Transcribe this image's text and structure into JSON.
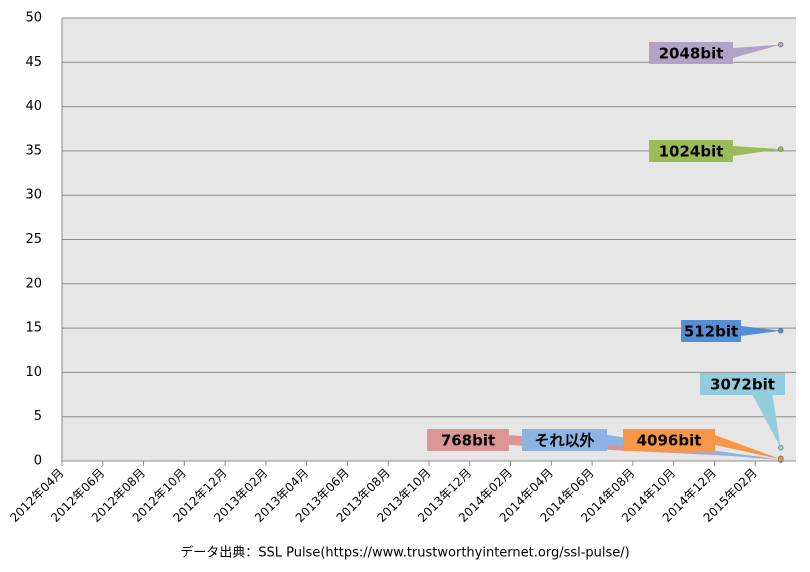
{
  "chart_data": {
    "type": "line",
    "categories": [
      "2012年04月",
      null,
      "2012年06月",
      null,
      "2012年08月",
      null,
      "2012年10月",
      null,
      "2012年12月",
      null,
      "2013年02月",
      null,
      "2013年04月",
      null,
      "2013年06月",
      null,
      "2013年08月",
      null,
      "2013年10月",
      null,
      "2013年12月",
      null,
      "2014年02月",
      null,
      "2014年04月",
      null,
      "2014年06月",
      null,
      "2014年08月",
      null,
      "2014年10月",
      null,
      "2014年12月",
      null,
      "2015年02月",
      null
    ],
    "series": [
      {
        "name": "512bit",
        "color": "#558ed5",
        "values": [
          null,
          null,
          null,
          null,
          null,
          null,
          null,
          null,
          null,
          null,
          null,
          null,
          null,
          null,
          null,
          null,
          null,
          null,
          null,
          null,
          null,
          null,
          null,
          null,
          null,
          null,
          null,
          null,
          null,
          null,
          null,
          null,
          null,
          null,
          null,
          14.7
        ]
      },
      {
        "name": "1024bit",
        "color": "#9bbb59",
        "values": [
          null,
          null,
          null,
          null,
          null,
          null,
          null,
          null,
          null,
          null,
          null,
          null,
          null,
          null,
          null,
          null,
          null,
          null,
          null,
          null,
          null,
          null,
          null,
          null,
          null,
          null,
          null,
          null,
          null,
          null,
          null,
          null,
          null,
          null,
          null,
          35.2
        ]
      },
      {
        "name": "2048bit",
        "color": "#b3a2c7",
        "values": [
          null,
          null,
          null,
          null,
          null,
          null,
          null,
          null,
          null,
          null,
          null,
          null,
          null,
          null,
          null,
          null,
          null,
          null,
          null,
          null,
          null,
          null,
          null,
          null,
          null,
          null,
          null,
          null,
          null,
          null,
          null,
          null,
          null,
          null,
          null,
          47
        ]
      },
      {
        "name": "3072bit",
        "color": "#93cddd",
        "values": [
          null,
          null,
          null,
          null,
          null,
          null,
          null,
          null,
          null,
          null,
          null,
          null,
          null,
          null,
          null,
          null,
          null,
          null,
          null,
          null,
          null,
          null,
          null,
          null,
          null,
          null,
          null,
          null,
          null,
          null,
          null,
          null,
          null,
          null,
          null,
          1.5
        ]
      },
      {
        "name": "768bit",
        "color": "#d99694",
        "values": [
          null,
          null,
          null,
          null,
          null,
          null,
          null,
          null,
          null,
          null,
          null,
          null,
          null,
          null,
          null,
          null,
          null,
          null,
          null,
          null,
          null,
          null,
          null,
          null,
          null,
          null,
          null,
          null,
          null,
          null,
          null,
          null,
          null,
          null,
          null,
          0.3
        ]
      },
      {
        "name": "それ以外",
        "color": "#8db3e2",
        "values": [
          null,
          null,
          null,
          null,
          null,
          null,
          null,
          null,
          null,
          null,
          null,
          null,
          null,
          null,
          null,
          null,
          null,
          null,
          null,
          null,
          null,
          null,
          null,
          null,
          null,
          null,
          null,
          null,
          null,
          null,
          null,
          null,
          null,
          null,
          null,
          0.1
        ]
      },
      {
        "name": "4096bit",
        "color": "#f79646",
        "values": [
          null,
          null,
          null,
          null,
          null,
          null,
          null,
          null,
          null,
          null,
          null,
          null,
          null,
          null,
          null,
          null,
          null,
          null,
          null,
          null,
          null,
          null,
          null,
          null,
          null,
          null,
          null,
          null,
          null,
          null,
          null,
          null,
          null,
          null,
          null,
          0.2
        ]
      }
    ],
    "ylim": [
      0,
      50
    ],
    "yticks": [
      0,
      5,
      10,
      15,
      20,
      25,
      30,
      35,
      40,
      45,
      50
    ],
    "grid": true,
    "source": "データ出典：SSL Pulse(https://www.trustworthyinternet.org/ssl-pulse/)"
  }
}
